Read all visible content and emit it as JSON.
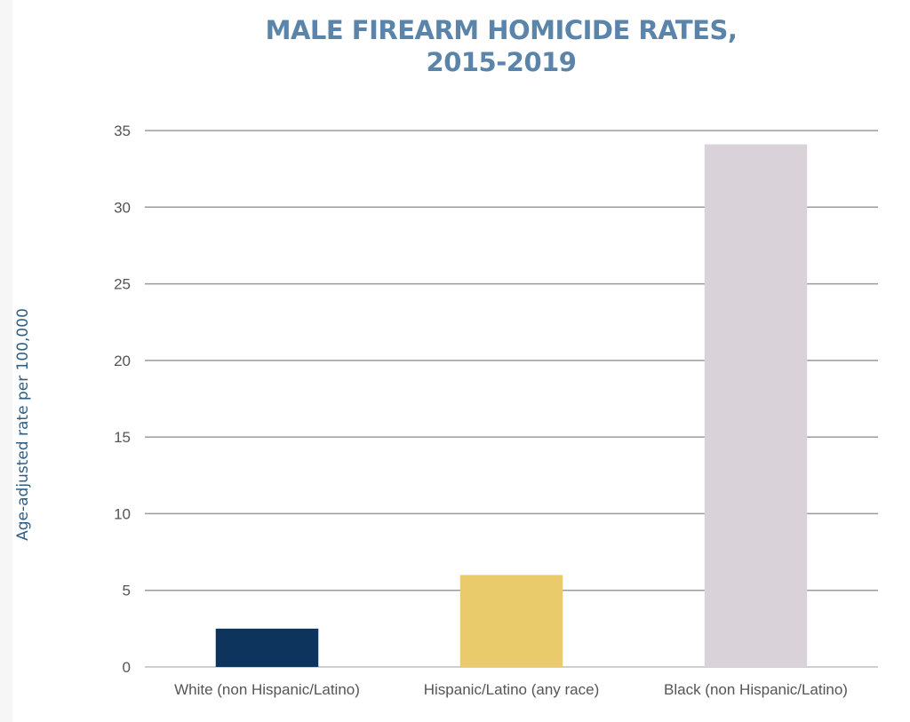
{
  "chart_data": {
    "type": "bar",
    "title_lines": [
      "MALE FIREARM HOMICIDE RATES,",
      "2015-2019"
    ],
    "ylabel": "Age-adjusted rate per 100,000",
    "xlabel": "",
    "categories": [
      "White (non Hispanic/Latino)",
      "Hispanic/Latino (any race)",
      "Black (non Hispanic/Latino)"
    ],
    "values": [
      2.5,
      6.0,
      34.1
    ],
    "colors": [
      "#0c345c",
      "#e9cb6b",
      "#d9d3d9"
    ],
    "ylim": [
      0,
      35
    ],
    "yticks": [
      0,
      5,
      10,
      15,
      20,
      25,
      30,
      35
    ],
    "grid": true,
    "legend": "none"
  }
}
